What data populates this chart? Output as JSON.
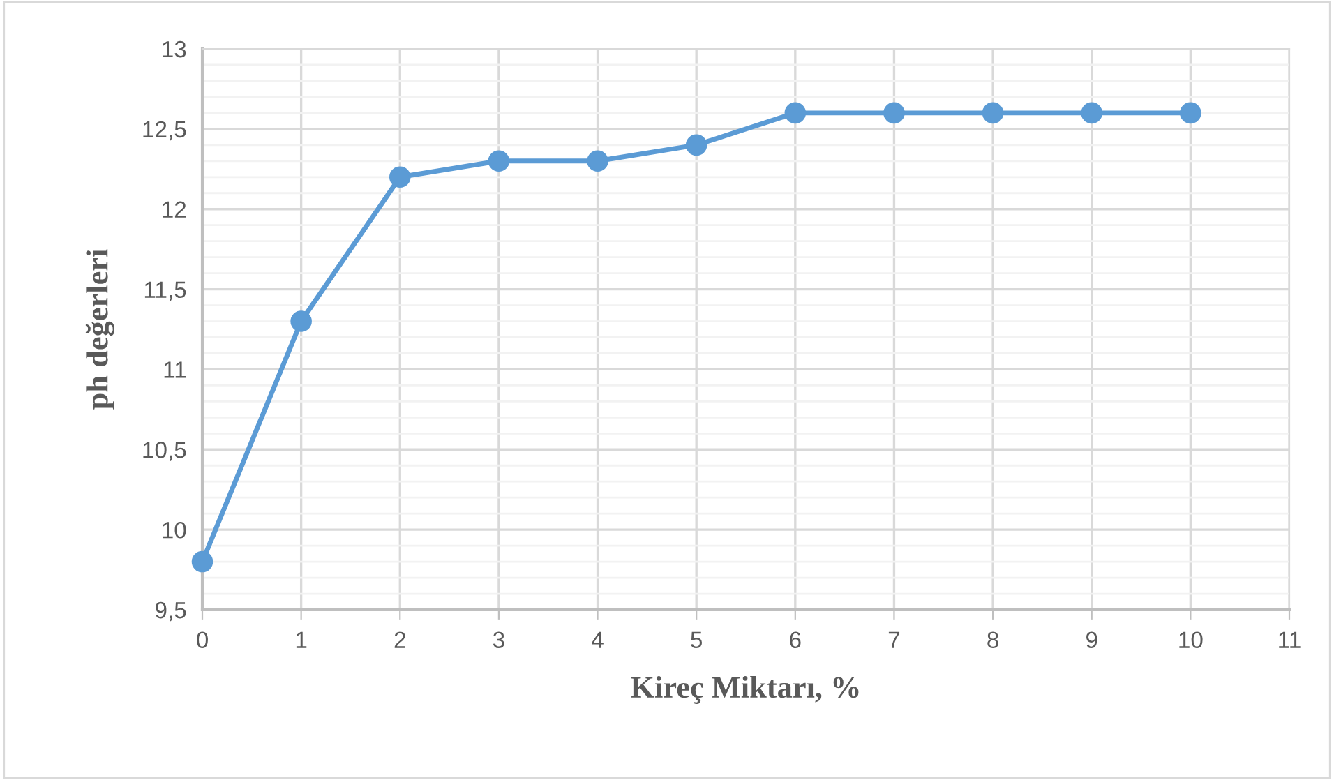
{
  "chart_data": {
    "type": "line",
    "xlabel": "Kireç Miktarı, %",
    "ylabel": "ph değerleri",
    "x": [
      0,
      1,
      2,
      3,
      4,
      5,
      6,
      7,
      8,
      9,
      10
    ],
    "series": [
      {
        "color": "#5b9bd5",
        "values": [
          9.8,
          11.3,
          12.2,
          12.3,
          12.3,
          12.4,
          12.6,
          12.6,
          12.6,
          12.6,
          12.6
        ]
      }
    ],
    "xlim": [
      0,
      11
    ],
    "xticks": [
      0,
      1,
      2,
      3,
      4,
      5,
      6,
      7,
      8,
      9,
      10,
      11
    ],
    "ylim": [
      9.5,
      13
    ],
    "yticks": [
      {
        "value": 9.5,
        "label": "9,5"
      },
      {
        "value": 10,
        "label": "10"
      },
      {
        "value": 10.5,
        "label": "10,5"
      },
      {
        "value": 11,
        "label": "11"
      },
      {
        "value": 11.5,
        "label": "11,5"
      },
      {
        "value": 12,
        "label": "12"
      },
      {
        "value": 12.5,
        "label": "12,5"
      },
      {
        "value": 13,
        "label": "13"
      }
    ],
    "grid": true,
    "marker": "circle",
    "line_style": "solid",
    "legend": false
  }
}
